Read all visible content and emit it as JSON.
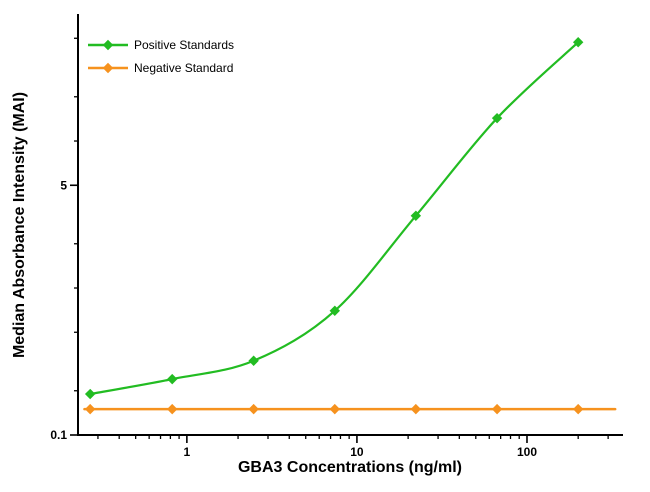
{
  "chart_data": {
    "type": "line",
    "title": "",
    "xlabel": "GBA3 Concentrations (ng/ml)",
    "ylabel": "Median Absorbance Intensity (MAI)",
    "x_scale": "log",
    "y_scale": "log",
    "x_range": [
      0.229,
      362
    ],
    "y_range": [
      0.1,
      72
    ],
    "x_major_ticks": [
      1,
      10,
      100
    ],
    "x_minor_ticks": [
      0.3,
      0.4,
      0.5,
      0.6,
      0.7,
      0.8,
      0.9,
      2,
      3,
      4,
      5,
      6,
      7,
      8,
      9,
      20,
      30,
      40,
      50,
      60,
      70,
      80,
      90,
      200,
      300
    ],
    "y_major_ticks": [
      0.1,
      5
    ],
    "y_minor_ticks": [
      0.2,
      0.5,
      1,
      2,
      10,
      20,
      50
    ],
    "grid": false,
    "legend_position": "top-left",
    "axis_color": "#000000",
    "series": [
      {
        "name": "Positive Standards",
        "color": "#22bc22",
        "marker": "diamond",
        "smooth": true,
        "x": [
          0.27,
          0.82,
          2.47,
          7.41,
          22.2,
          66.7,
          200
        ],
        "y": [
          0.19,
          0.24,
          0.32,
          0.7,
          3.1,
          14.3,
          47
        ]
      },
      {
        "name": "Negative Standard",
        "color": "#f6921e",
        "marker": "diamond",
        "smooth": false,
        "extend_x": [
          0.25,
          330
        ],
        "x": [
          0.27,
          0.82,
          2.47,
          7.41,
          22.2,
          66.7,
          200
        ],
        "y": [
          0.15,
          0.15,
          0.15,
          0.15,
          0.15,
          0.15,
          0.15
        ]
      }
    ]
  }
}
